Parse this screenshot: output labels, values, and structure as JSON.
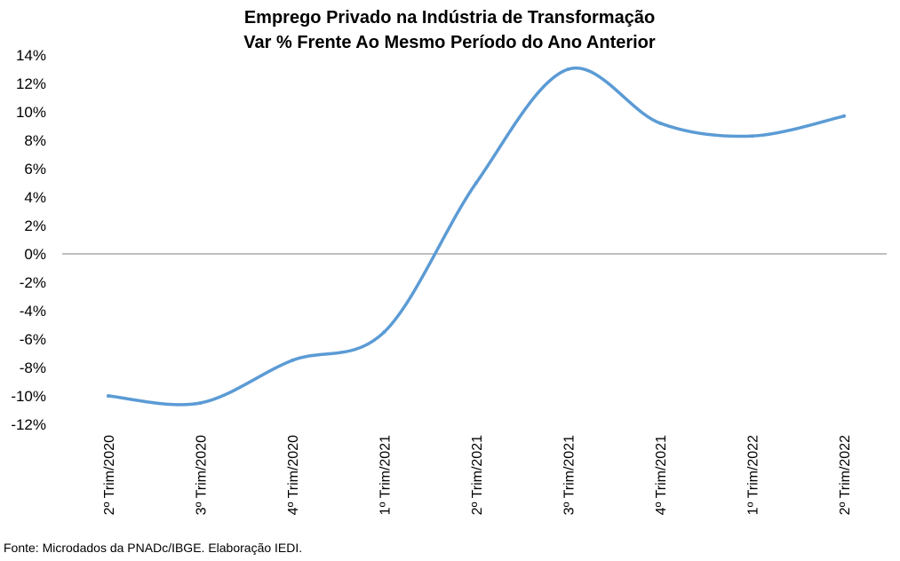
{
  "chart_data": {
    "type": "line",
    "title": "Emprego Privado na Indústria de Transformação",
    "subtitle": "Var % Frente Ao Mesmo Período do Ano Anterior",
    "xlabel": "",
    "ylabel": "",
    "categories": [
      "2º Trim/2020",
      "3º Trim/2020",
      "4º Trim/2020",
      "1º Trim/2021",
      "2º Trim/2021",
      "3º Trim/2021",
      "4º Trim/2021",
      "1º Trim/2022",
      "2º Trim/2022"
    ],
    "series": [
      {
        "values": [
          -10.0,
          -10.5,
          -7.5,
          -5.5,
          5.0,
          13.0,
          9.2,
          8.3,
          9.7
        ],
        "color": "#5B9BD5"
      }
    ],
    "ylim": [
      -12,
      14
    ],
    "yticks": [
      -12,
      -10,
      -8,
      -6,
      -4,
      -2,
      0,
      2,
      4,
      6,
      8,
      10,
      12,
      14
    ],
    "ytick_labels": [
      "-12%",
      "-10%",
      "-8%",
      "-6%",
      "-4%",
      "-2%",
      "0%",
      "2%",
      "4%",
      "6%",
      "8%",
      "10%",
      "12%",
      "14%"
    ],
    "grid": false,
    "legend": "none",
    "smooth": true,
    "zero_line": true
  },
  "source": "Fonte: Microdados da PNADc/IBGE. Elaboração IEDI."
}
